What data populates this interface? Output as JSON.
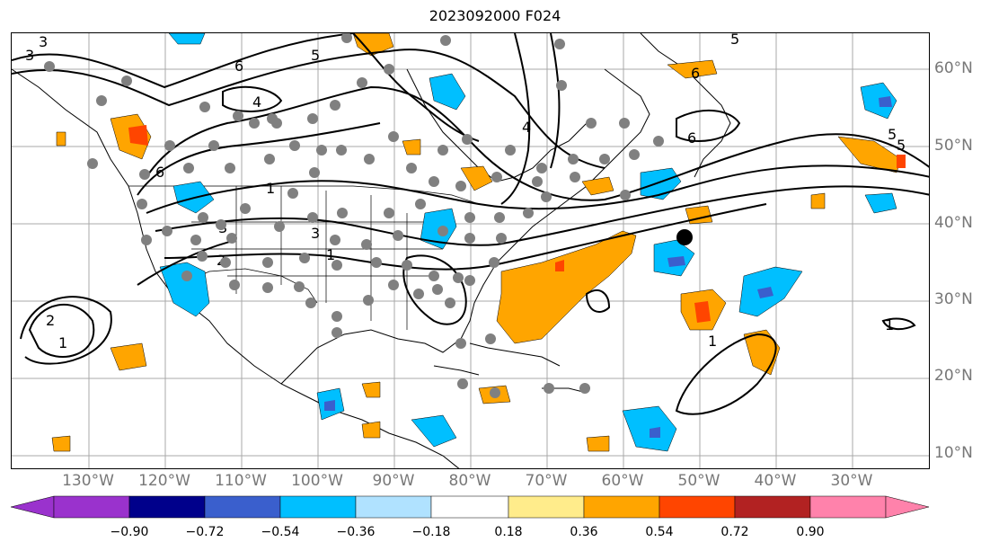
{
  "title": "2023092000 F024",
  "lat_labels": [
    "60°N",
    "50°N",
    "40°N",
    "30°N",
    "20°N",
    "10°N"
  ],
  "lon_labels": [
    "130°W",
    "120°W",
    "110°W",
    "100°W",
    "90°W",
    "80°W",
    "70°W",
    "60°W",
    "50°W",
    "40°W",
    "30°W"
  ],
  "colorbar": {
    "ticks": [
      "−0.90",
      "−0.72",
      "−0.54",
      "−0.36",
      "−0.18",
      "0.18",
      "0.36",
      "0.54",
      "0.72",
      "0.90"
    ],
    "colors": [
      "#9a32cd",
      "#00008b",
      "#3a5fcd",
      "#00bfff",
      "#b0e2ff",
      "#ffffff",
      "#ffec8b",
      "#ffa500",
      "#ff4500",
      "#b22222",
      "#ff82ab"
    ]
  },
  "contour_labels": [
    "5",
    "6",
    "4",
    "3",
    "2",
    "1",
    "6",
    "5",
    "6",
    "5",
    "6",
    "3",
    "1",
    "2",
    "1",
    "3",
    "1",
    "1",
    "4",
    "3",
    "5"
  ],
  "colors": {
    "positive": "#ffa500",
    "strong_positive": "#ff4500",
    "negative": "#00bfff",
    "strong_negative": "#3a5fcd",
    "stations": "#808080",
    "marker": "#000000"
  }
}
